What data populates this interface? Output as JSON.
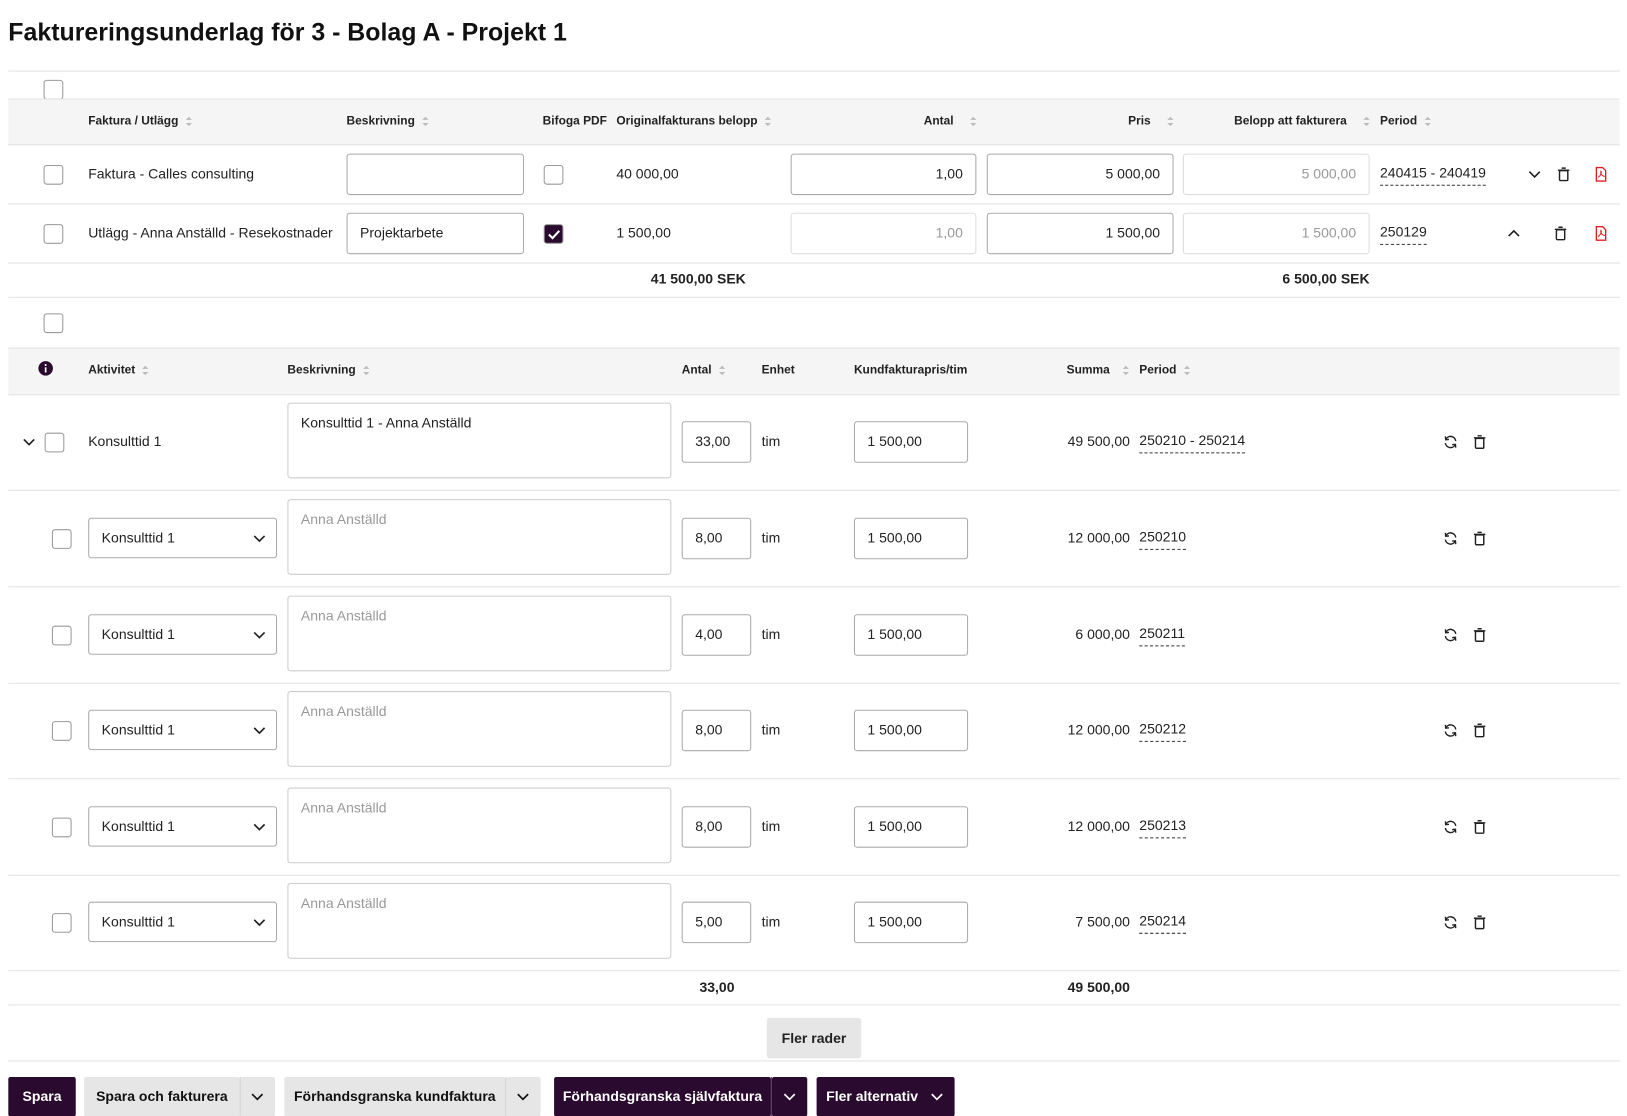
{
  "header": {
    "title": "Faktureringsunderlag för 3 - Bolag A - Projekt 1"
  },
  "table1": {
    "columns": [
      "Faktura / Utlägg",
      "Beskrivning",
      "Bifoga PDF",
      "Originalfakturans belopp",
      "Antal",
      "Pris",
      "Belopp att fakturera",
      "Period"
    ],
    "rows": [
      {
        "name": "Faktura - Calles consulting",
        "pdf": false,
        "original": "40 000,00",
        "antal": "1,00",
        "pris": "5 000,00",
        "belopp": "5 000,00",
        "period": "240415 - 240419",
        "expanded": false
      },
      {
        "name": "Utlägg - Anna Anställd - Resekostnader",
        "description": "Projektarbete",
        "pdf": true,
        "original": "1 500,00",
        "antal": "1,00",
        "pris": "1 500,00",
        "belopp": "1 500,00",
        "period": "250129",
        "expanded": true
      }
    ],
    "totals": {
      "original": "41 500,00 SEK",
      "belopp": "6 500,00 SEK"
    }
  },
  "table2": {
    "columns": [
      "Aktivitet",
      "Beskrivning",
      "Antal",
      "Enhet",
      "Kundfakturapris/tim",
      "Summa",
      "Period"
    ],
    "main": {
      "activity": "Konsulttid 1",
      "description": "Konsulttid 1 - Anna Anställd",
      "antal": "33,00",
      "unit": "tim",
      "price": "1 500,00",
      "sum": "49 500,00",
      "period": "250210 - 250214"
    },
    "rows": [
      {
        "activity": "Konsulttid 1",
        "placeholder": "Anna Anställd",
        "antal": "8,00",
        "unit": "tim",
        "price": "1 500,00",
        "sum": "12 000,00",
        "period": "250210"
      },
      {
        "activity": "Konsulttid 1",
        "placeholder": "Anna Anställd",
        "antal": "4,00",
        "unit": "tim",
        "price": "1 500,00",
        "sum": "6 000,00",
        "period": "250211"
      },
      {
        "activity": "Konsulttid 1",
        "placeholder": "Anna Anställd",
        "antal": "8,00",
        "unit": "tim",
        "price": "1 500,00",
        "sum": "12 000,00",
        "period": "250212"
      },
      {
        "activity": "Konsulttid 1",
        "placeholder": "Anna Anställd",
        "antal": "8,00",
        "unit": "tim",
        "price": "1 500,00",
        "sum": "12 000,00",
        "period": "250213"
      },
      {
        "activity": "Konsulttid 1",
        "placeholder": "Anna Anställd",
        "antal": "5,00",
        "unit": "tim",
        "price": "1 500,00",
        "sum": "7 500,00",
        "period": "250214"
      }
    ],
    "totals": {
      "antal": "33,00",
      "sum": "49 500,00"
    },
    "more": "Fler rader"
  },
  "buttons": [
    {
      "label": "Spara",
      "dark": true,
      "split": false
    },
    {
      "label": "Spara och fakturera",
      "dark": false,
      "split": true
    },
    {
      "label": "Förhandsgranska kundfaktura",
      "dark": false,
      "split": true
    },
    {
      "label": "Förhandsgranska självfaktura",
      "dark": true,
      "split": true
    },
    {
      "label": "Fler alternativ",
      "dark": true,
      "split": false
    }
  ]
}
